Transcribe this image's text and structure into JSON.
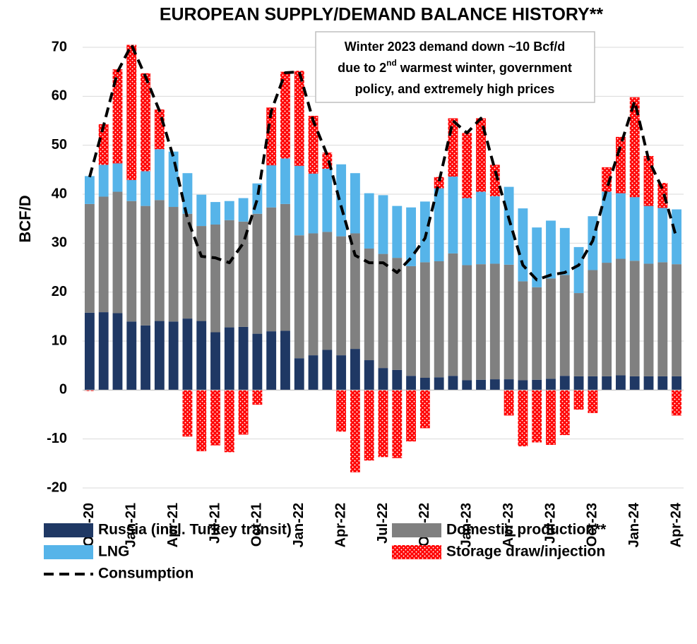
{
  "chart_data": {
    "type": "bar",
    "title": "EUROPEAN SUPPLY/DEMAND BALANCE HISTORY**",
    "y_label": "BCF/D",
    "annotation": [
      "Winter 2023 demand down ~10 Bcf/d",
      [
        "due to 2",
        "nd",
        "warmest winter, government"
      ],
      "policy, and extremely high prices"
    ],
    "categories": [
      "Oct-20",
      null,
      null,
      "Jan-21",
      null,
      null,
      "Apr-21",
      null,
      null,
      "Jul-21",
      null,
      null,
      "Oct-21",
      null,
      null,
      "Jan-22",
      null,
      null,
      "Apr-22",
      null,
      null,
      "Jul-22",
      null,
      null,
      "Oct-22",
      null,
      null,
      "Jan-23",
      null,
      null,
      "Apr-23",
      null,
      null,
      "Jul-23",
      null,
      null,
      "Oct-23",
      null,
      null,
      "Jan-24",
      null,
      null,
      "Apr-24"
    ],
    "series": [
      {
        "name": "Russia (incl. Turkey transit)",
        "type": "bar",
        "color": "#1f3864",
        "values": [
          15.8,
          15.9,
          15.7,
          14,
          13.2,
          14.1,
          14,
          14.6,
          14.1,
          11.8,
          12.8,
          12.9,
          11.5,
          12,
          12.1,
          6.5,
          7.1,
          8.2,
          7.1,
          8.4,
          6.1,
          4.5,
          4.1,
          2.9,
          2.5,
          2.6,
          2.9,
          2,
          2.1,
          2.2,
          2.2,
          2,
          2.1,
          2.3,
          2.9,
          2.8,
          2.8,
          2.8,
          3,
          2.8,
          2.8,
          2.8,
          2.8
        ]
      },
      {
        "name": "Domestic production**",
        "type": "bar",
        "color": "#808080",
        "values": [
          22.2,
          23.6,
          24.8,
          24.6,
          24.4,
          24.7,
          23.4,
          21.4,
          19.4,
          22,
          21.9,
          21.5,
          24.5,
          25.3,
          25.9,
          25.1,
          24.9,
          24.1,
          24.3,
          23.6,
          22.8,
          23.3,
          22.9,
          22.4,
          23.6,
          23.7,
          25,
          23.5,
          23.6,
          23.6,
          23.4,
          20.2,
          18.9,
          20.5,
          20.6,
          17,
          21.7,
          23.2,
          23.8,
          23.6,
          23,
          23.3,
          22.9
        ]
      },
      {
        "name": "LNG",
        "type": "bar",
        "color": "#56b4e9",
        "values": [
          5.7,
          6.5,
          5.8,
          4.3,
          7.1,
          10.4,
          11.3,
          8.3,
          6.4,
          4.6,
          3.9,
          4.8,
          6.2,
          8.6,
          9.3,
          14.2,
          12.2,
          12.9,
          14.7,
          12.3,
          11.3,
          12,
          10.6,
          12,
          12.4,
          14.9,
          15.7,
          13.7,
          14.8,
          13.8,
          15.9,
          14.9,
          12.2,
          11.8,
          9.6,
          9.4,
          11,
          14.5,
          13.4,
          13,
          11.8,
          11.1,
          11.2
        ]
      },
      {
        "name": "Storage draw/injection",
        "type": "bar",
        "color": "#ff0000",
        "pattern": "dots",
        "values": [
          -0.2,
          8.3,
          19.2,
          27.6,
          20,
          8.1,
          0,
          -9.5,
          -12.5,
          -11.3,
          -12.7,
          -9.1,
          -3,
          11.8,
          17.7,
          19.4,
          11.8,
          3.3,
          -8.5,
          -16.8,
          -14.4,
          -13.7,
          -13.9,
          -10.5,
          -7.8,
          2.3,
          11.9,
          13.3,
          15,
          6.4,
          -5.2,
          -11.5,
          -10.7,
          -11.2,
          -9.2,
          -4,
          -4.7,
          5,
          11.5,
          20.4,
          10.2,
          5.1,
          -5.2
        ]
      },
      {
        "name": "Consumption",
        "type": "line",
        "color": "#000000",
        "dashed": true,
        "values": [
          43.5,
          54,
          65,
          70.5,
          64,
          57,
          47.5,
          35,
          27.3,
          27,
          26,
          30,
          39,
          57,
          64.8,
          65,
          55,
          48,
          37.5,
          27.5,
          26,
          26,
          24,
          27,
          31,
          42.5,
          55,
          52.5,
          55.5,
          45,
          35,
          25.5,
          22.5,
          23.5,
          24,
          25.5,
          30.5,
          41,
          50,
          59,
          47,
          41,
          31
        ]
      }
    ],
    "ylim": [
      -20,
      70
    ],
    "yticks": [
      -20,
      -10,
      0,
      10,
      20,
      30,
      40,
      50,
      60,
      70
    ],
    "grid": true
  }
}
